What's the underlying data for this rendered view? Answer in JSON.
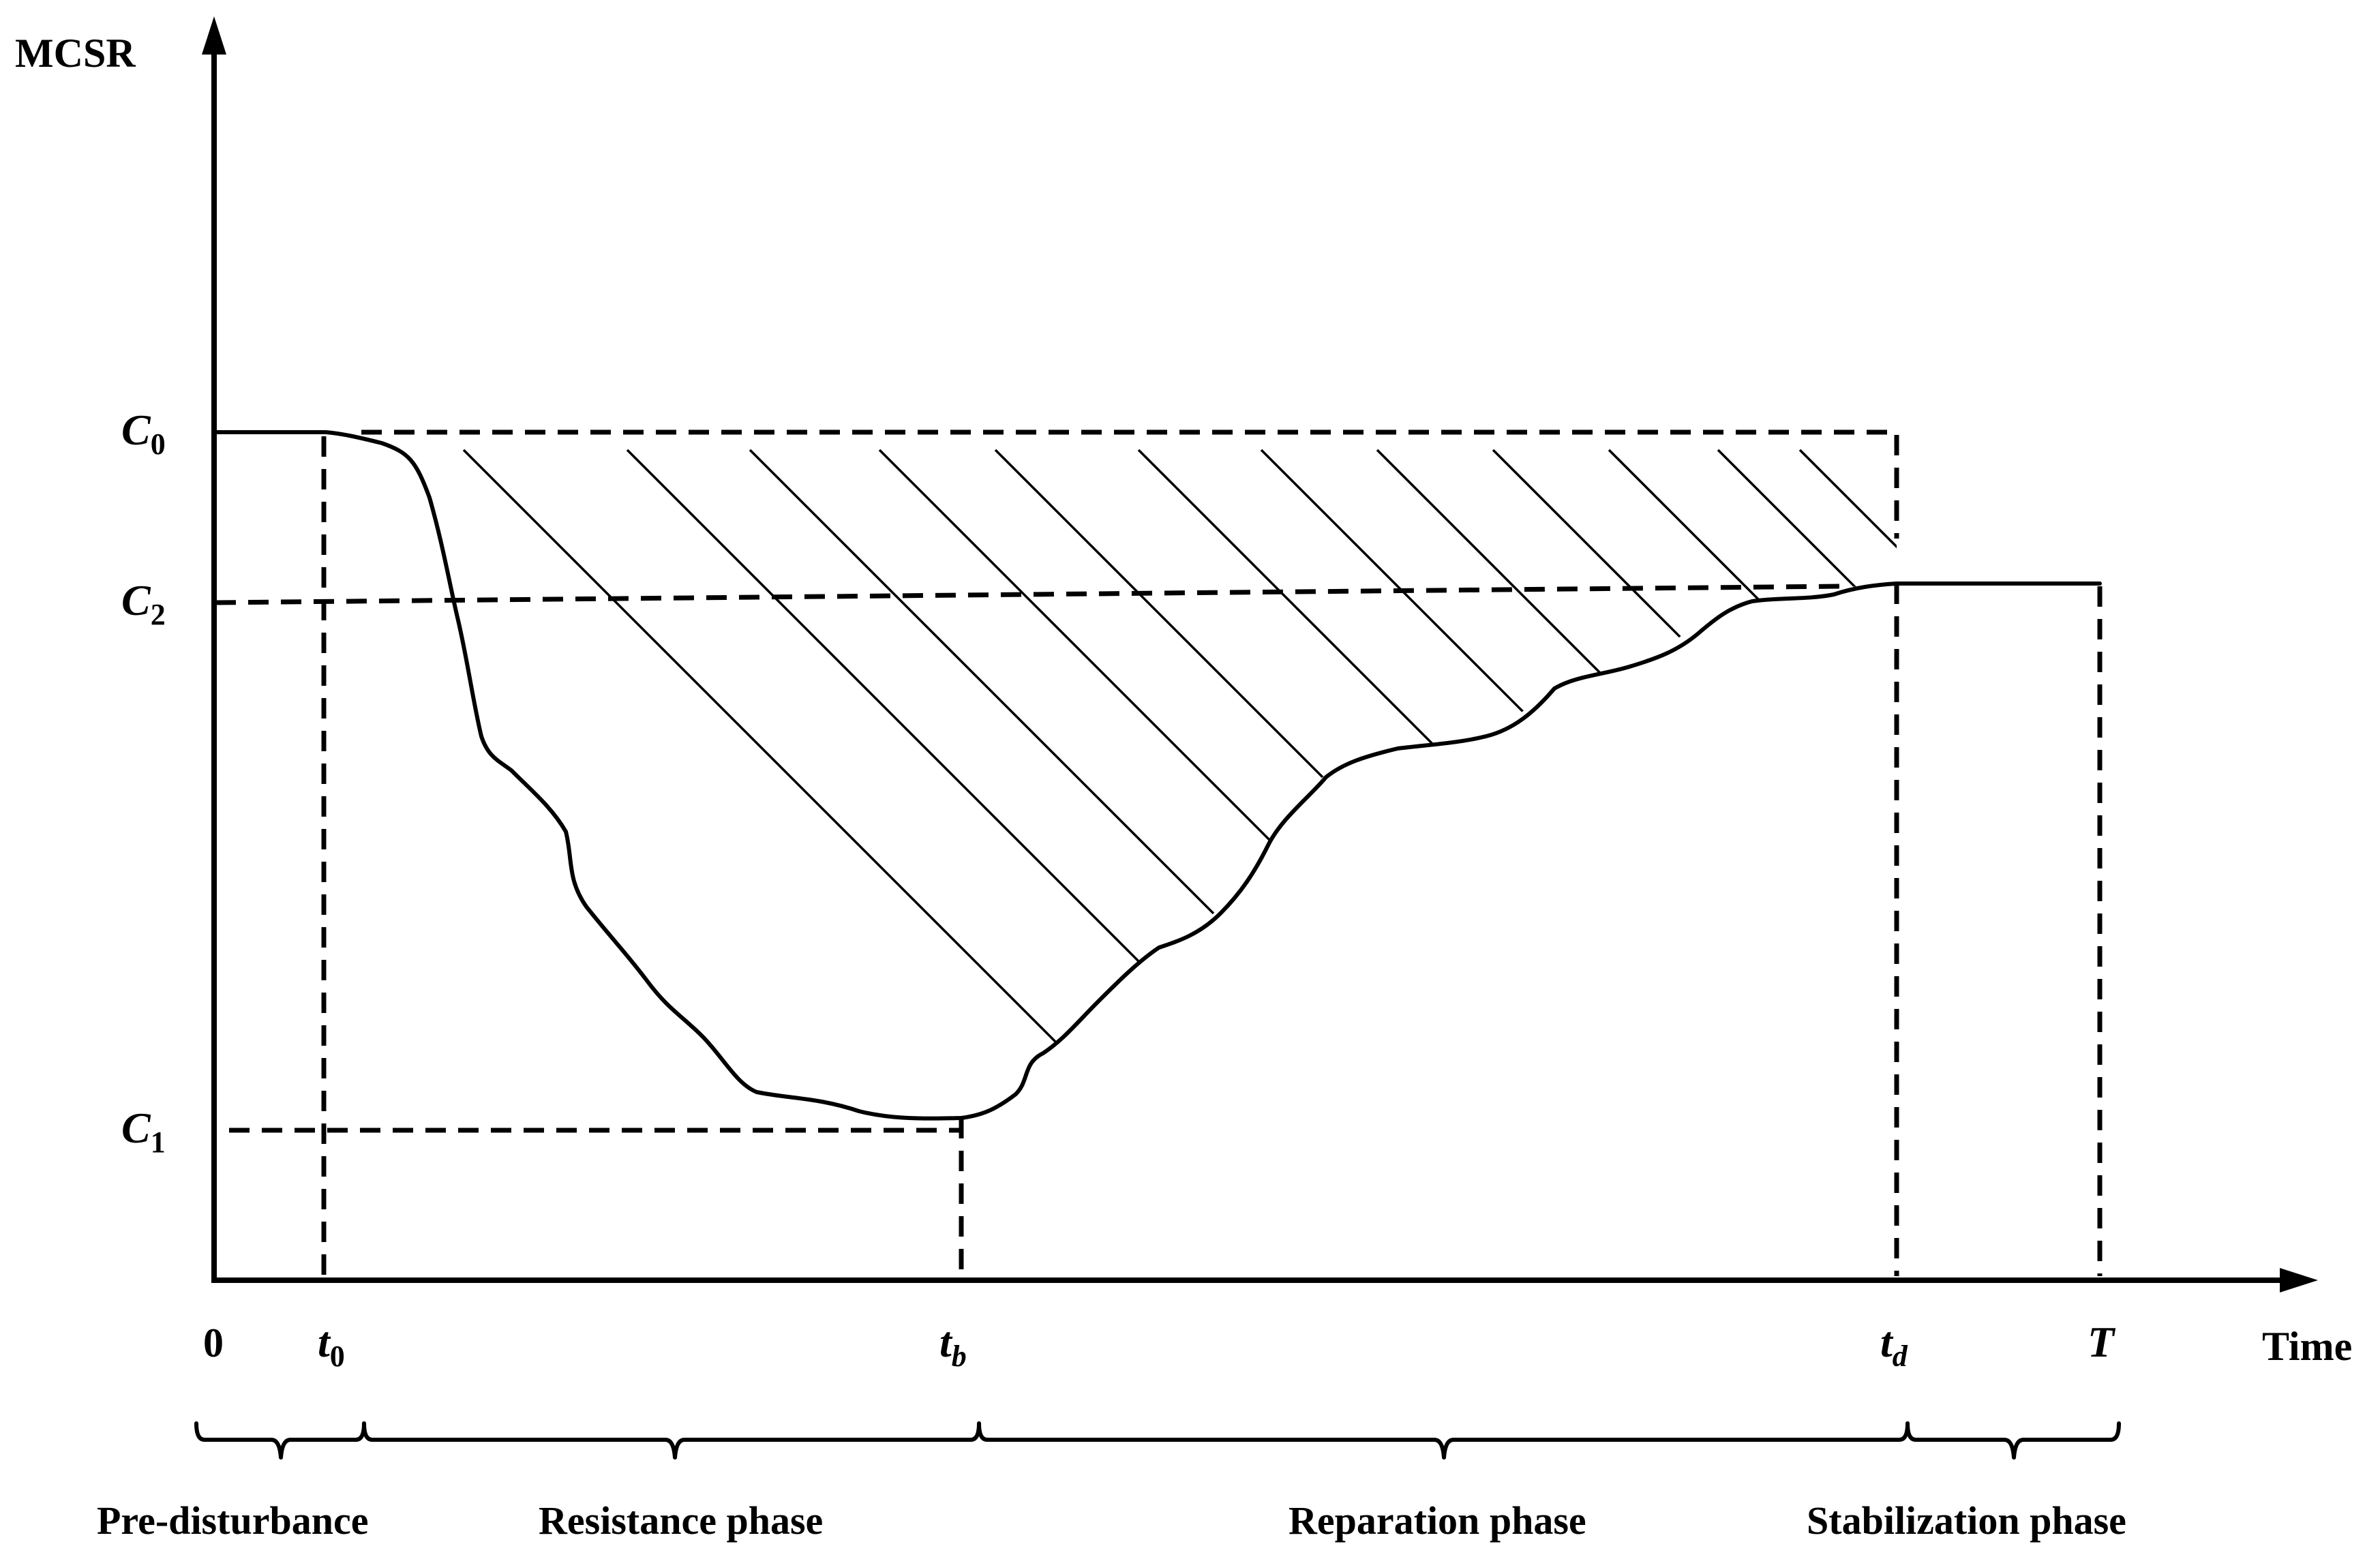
{
  "axes": {
    "y_label": "MCSR",
    "x_label": "Time",
    "origin_label": "0"
  },
  "y_markers": [
    {
      "id": "c0",
      "base": "C",
      "sub": "0"
    },
    {
      "id": "c2",
      "base": "C",
      "sub": "2"
    },
    {
      "id": "c1",
      "base": "C",
      "sub": "1"
    }
  ],
  "x_markers": [
    {
      "id": "t0",
      "base": "t",
      "sub": "0"
    },
    {
      "id": "tb",
      "base": "t",
      "sub": "b"
    },
    {
      "id": "td",
      "base": "t",
      "sub": "d"
    },
    {
      "id": "T",
      "base": "T",
      "sub": ""
    }
  ],
  "phases": [
    {
      "id": "pre",
      "label": "Pre-disturbance"
    },
    {
      "id": "resistance",
      "label": "Resistance phase"
    },
    {
      "id": "reparation",
      "label": "Reparation phase"
    },
    {
      "id": "stabilization",
      "label": "Stabilization phase"
    }
  ]
}
